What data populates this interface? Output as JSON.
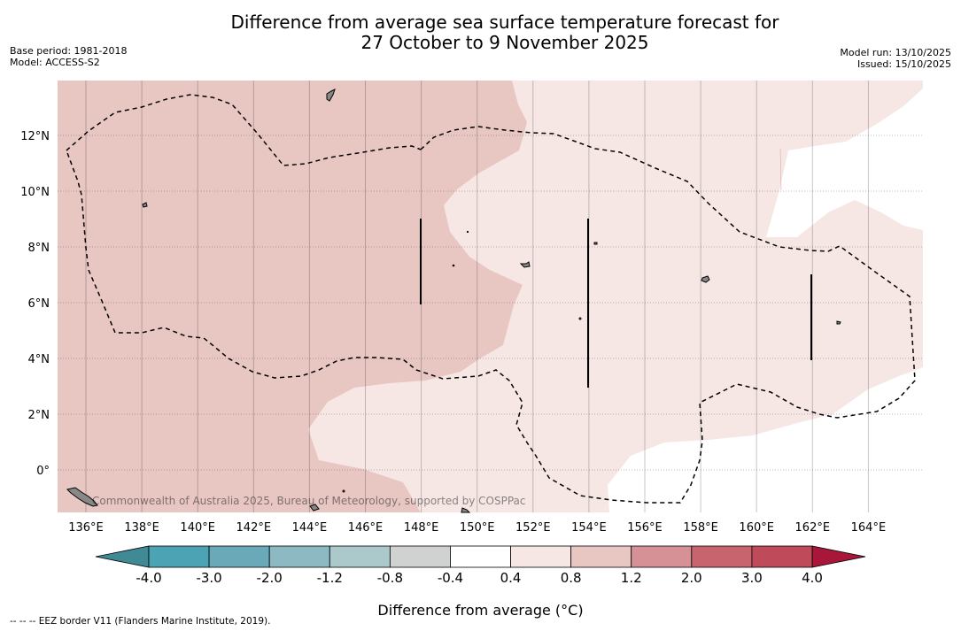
{
  "title_line1": "Difference from average sea surface temperature forecast for",
  "title_line2": "27 October to 9 November 2025",
  "base_period": "Base period: 1981-2018",
  "model": "Model: ACCESS-S2",
  "model_run": "Model run: 13/10/2025",
  "issued": "Issued: 15/10/2025",
  "longitude_labels": [
    "136°E",
    "138°E",
    "140°E",
    "142°E",
    "144°E",
    "146°E",
    "148°E",
    "150°E",
    "152°E",
    "154°E",
    "156°E",
    "158°E",
    "160°E",
    "162°E",
    "164°E"
  ],
  "latitude_labels": [
    "12°N",
    "10°N",
    "8°N",
    "6°N",
    "4°N",
    "2°N",
    "0°"
  ],
  "watermark": "Commonwealth of Australia 2025, Bureau of Meteorology, supported by COSPPac",
  "colorbar": {
    "tick_labels": [
      "-4.0",
      "-3.0",
      "-2.0",
      "-1.2",
      "-0.8",
      "-0.4",
      "0.4",
      "0.8",
      "1.2",
      "2.0",
      "3.0",
      "4.0"
    ],
    "colors": [
      "#4ba3b4",
      "#6aaab8",
      "#8cb9c2",
      "#abc8cb",
      "#d0d2d2",
      "#ffffff",
      "#f6e7e5",
      "#e8c7c3",
      "#d69197",
      "#c8646e",
      "#bf4a5a"
    ],
    "under_color": "#3f8a94",
    "over_color": "#a8173a",
    "label": "Difference from average (°C)"
  },
  "map_colors": {
    "warm": "#e8c7c3",
    "light": "#f6e7e5",
    "neutral": "#ffffff"
  },
  "footnote": "-- -- -- EEZ border V11 (Flanders Marine Institute, 2019)."
}
